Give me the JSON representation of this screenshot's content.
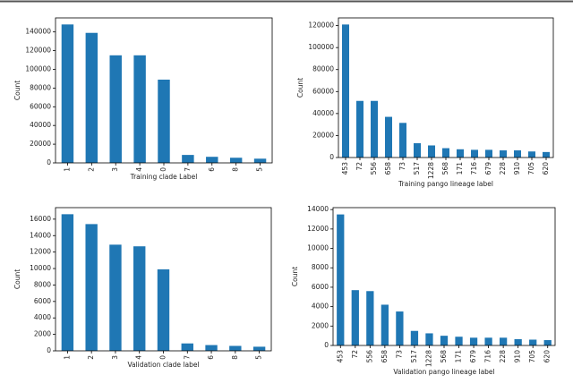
{
  "chart_data": [
    {
      "type": "bar",
      "xlabel": "Training clade Label",
      "ylabel": "Count",
      "color": "#1f77b4",
      "categories": [
        "1",
        "2",
        "3",
        "4",
        "0",
        "7",
        "6",
        "8",
        "5"
      ],
      "values": [
        148000,
        139000,
        115000,
        115000,
        89000,
        8500,
        6500,
        5500,
        4500
      ],
      "ylim": [
        0,
        155000
      ],
      "yticks": [
        0,
        20000,
        40000,
        60000,
        80000,
        100000,
        120000,
        140000
      ]
    },
    {
      "type": "bar",
      "xlabel": "Training pango lineage label",
      "ylabel": "Count",
      "color": "#1f77b4",
      "categories": [
        "453",
        "72",
        "556",
        "658",
        "73",
        "517",
        "1228",
        "568",
        "171",
        "716",
        "679",
        "228",
        "910",
        "705",
        "620"
      ],
      "values": [
        121000,
        51500,
        51500,
        37000,
        31500,
        13000,
        11000,
        8500,
        7500,
        7000,
        7000,
        6500,
        6500,
        5500,
        5000
      ],
      "ylim": [
        0,
        127000
      ],
      "yticks": [
        0,
        20000,
        40000,
        60000,
        80000,
        100000,
        120000
      ]
    },
    {
      "type": "bar",
      "xlabel": "Validation clade label",
      "ylabel": "Count",
      "color": "#1f77b4",
      "categories": [
        "1",
        "2",
        "3",
        "4",
        "0",
        "7",
        "6",
        "8",
        "5"
      ],
      "values": [
        16600,
        15400,
        12900,
        12700,
        9900,
        900,
        700,
        600,
        500
      ],
      "ylim": [
        0,
        17400
      ],
      "yticks": [
        0,
        2000,
        4000,
        6000,
        8000,
        10000,
        12000,
        14000,
        16000
      ]
    },
    {
      "type": "bar",
      "xlabel": "Validation pango lineage label",
      "ylabel": "Count",
      "color": "#1f77b4",
      "categories": [
        "453",
        "72",
        "556",
        "658",
        "73",
        "517",
        "1228",
        "568",
        "171",
        "679",
        "716",
        "228",
        "910",
        "705",
        "620"
      ],
      "values": [
        13500,
        5700,
        5600,
        4200,
        3500,
        1500,
        1250,
        1000,
        900,
        800,
        800,
        800,
        650,
        600,
        550
      ],
      "ylim": [
        0,
        14200
      ],
      "yticks": [
        0,
        2000,
        4000,
        6000,
        8000,
        10000,
        12000,
        14000
      ]
    }
  ]
}
